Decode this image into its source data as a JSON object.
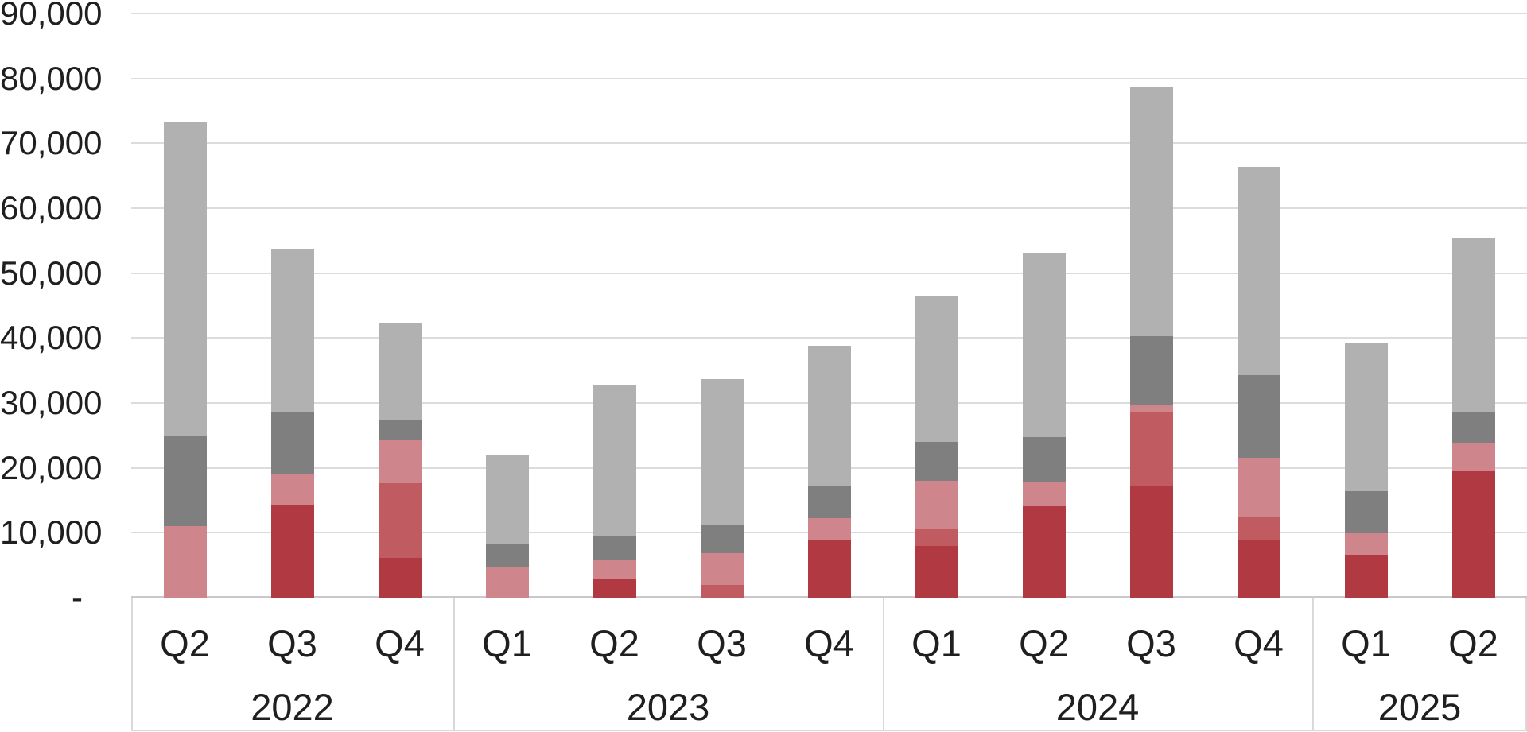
{
  "chart_data": {
    "type": "bar",
    "stacked": true,
    "title": "",
    "xlabel": "",
    "ylabel": "",
    "grid": true,
    "legend": "none",
    "ylim": [
      0,
      90000
    ],
    "ytick_step": 10000,
    "yticks": [
      {
        "value": 0,
        "label": "-"
      },
      {
        "value": 10000,
        "label": "10,000"
      },
      {
        "value": 20000,
        "label": "20,000"
      },
      {
        "value": 30000,
        "label": "30,000"
      },
      {
        "value": 40000,
        "label": "40,000"
      },
      {
        "value": 50000,
        "label": "50,000"
      },
      {
        "value": 60000,
        "label": "60,000"
      },
      {
        "value": 70000,
        "label": "70,000"
      },
      {
        "value": 80000,
        "label": "80,000"
      },
      {
        "value": 90000,
        "label": "90,000"
      }
    ],
    "categories": [
      "Q2",
      "Q3",
      "Q4",
      "Q1",
      "Q2",
      "Q3",
      "Q4",
      "Q1",
      "Q2",
      "Q3",
      "Q4",
      "Q1",
      "Q2"
    ],
    "year_groups": [
      {
        "label": "2022",
        "span": 3
      },
      {
        "label": "2023",
        "span": 4
      },
      {
        "label": "2024",
        "span": 4
      },
      {
        "label": "2025",
        "span": 2
      }
    ],
    "series": [
      {
        "name": "dark-red",
        "color": "#B13A42",
        "values": [
          0,
          14300,
          6100,
          0,
          2900,
          0,
          8800,
          8000,
          14100,
          17300,
          8800,
          6600,
          19600
        ]
      },
      {
        "name": "medium-red",
        "color": "#C05B62",
        "values": [
          0,
          0,
          11500,
          0,
          0,
          2000,
          0,
          2600,
          0,
          11200,
          3700,
          0,
          0
        ]
      },
      {
        "name": "light-red",
        "color": "#CE868C",
        "values": [
          11000,
          4700,
          6700,
          4700,
          2800,
          4800,
          3400,
          7400,
          3600,
          1200,
          9000,
          3400,
          4200
        ]
      },
      {
        "name": "dark-gray",
        "color": "#7F7F7F",
        "values": [
          13900,
          9700,
          3100,
          3600,
          3900,
          4400,
          5000,
          6000,
          7000,
          10600,
          12800,
          6400,
          4900
        ]
      },
      {
        "name": "light-gray",
        "color": "#B1B1B1",
        "values": [
          48500,
          25000,
          14800,
          13600,
          23200,
          22500,
          21600,
          22500,
          28500,
          38500,
          32100,
          22800,
          26600
        ]
      }
    ],
    "totals": [
      73400,
      53700,
      42200,
      21900,
      32800,
      33700,
      38800,
      46500,
      53200,
      78800,
      66400,
      39200,
      55300
    ],
    "colors": {
      "gridline": "#DCDCDC",
      "axis_line": "#C9C9C9",
      "separator": "#D9D9D9",
      "text": "#1F1F1F"
    }
  }
}
